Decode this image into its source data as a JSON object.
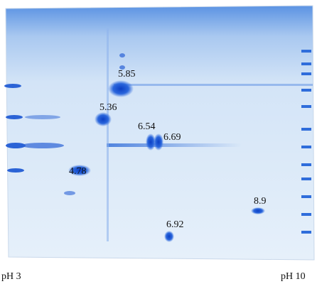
{
  "spots": [
    {
      "label": "5.85"
    },
    {
      "label": "5.36"
    },
    {
      "label": "6.54"
    },
    {
      "label": "6.69"
    },
    {
      "label": "4.78"
    },
    {
      "label": "8.9"
    },
    {
      "label": "6.92"
    }
  ],
  "axis": {
    "left": "pH 3",
    "right": "pH 10"
  }
}
